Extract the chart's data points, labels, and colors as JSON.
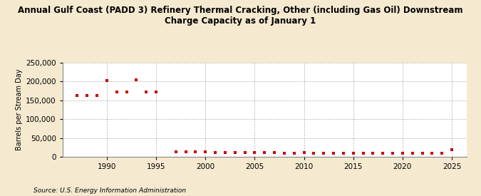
{
  "title": "Annual Gulf Coast (PADD 3) Refinery Thermal Cracking, Other (including Gas Oil) Downstream\nCharge Capacity as of January 1",
  "ylabel": "Barrels per Stream Day",
  "source": "Source: U.S. Energy Information Administration",
  "background_color": "#f5ead0",
  "plot_background_color": "#ffffff",
  "marker_color": "#cc0000",
  "years": [
    1987,
    1988,
    1989,
    1990,
    1991,
    1992,
    1993,
    1994,
    1995,
    1997,
    1998,
    1999,
    2000,
    2001,
    2002,
    2003,
    2004,
    2005,
    2006,
    2007,
    2008,
    2009,
    2010,
    2011,
    2012,
    2013,
    2014,
    2015,
    2016,
    2017,
    2018,
    2019,
    2020,
    2021,
    2022,
    2023,
    2024,
    2025
  ],
  "values": [
    163000,
    162000,
    162000,
    202000,
    172000,
    172000,
    205000,
    173000,
    173000,
    13000,
    13000,
    13000,
    13000,
    12000,
    11000,
    11000,
    12000,
    12000,
    11000,
    11000,
    10000,
    10000,
    11000,
    10000,
    10000,
    10000,
    10000,
    10000,
    9000,
    9000,
    9000,
    9000,
    9000,
    9000,
    9000,
    9000,
    9000,
    18000
  ],
  "ylim": [
    0,
    250000
  ],
  "yticks": [
    0,
    50000,
    100000,
    150000,
    200000,
    250000
  ],
  "xlim": [
    1985.5,
    2026.5
  ],
  "xticks": [
    1990,
    1995,
    2000,
    2005,
    2010,
    2015,
    2020,
    2025
  ]
}
